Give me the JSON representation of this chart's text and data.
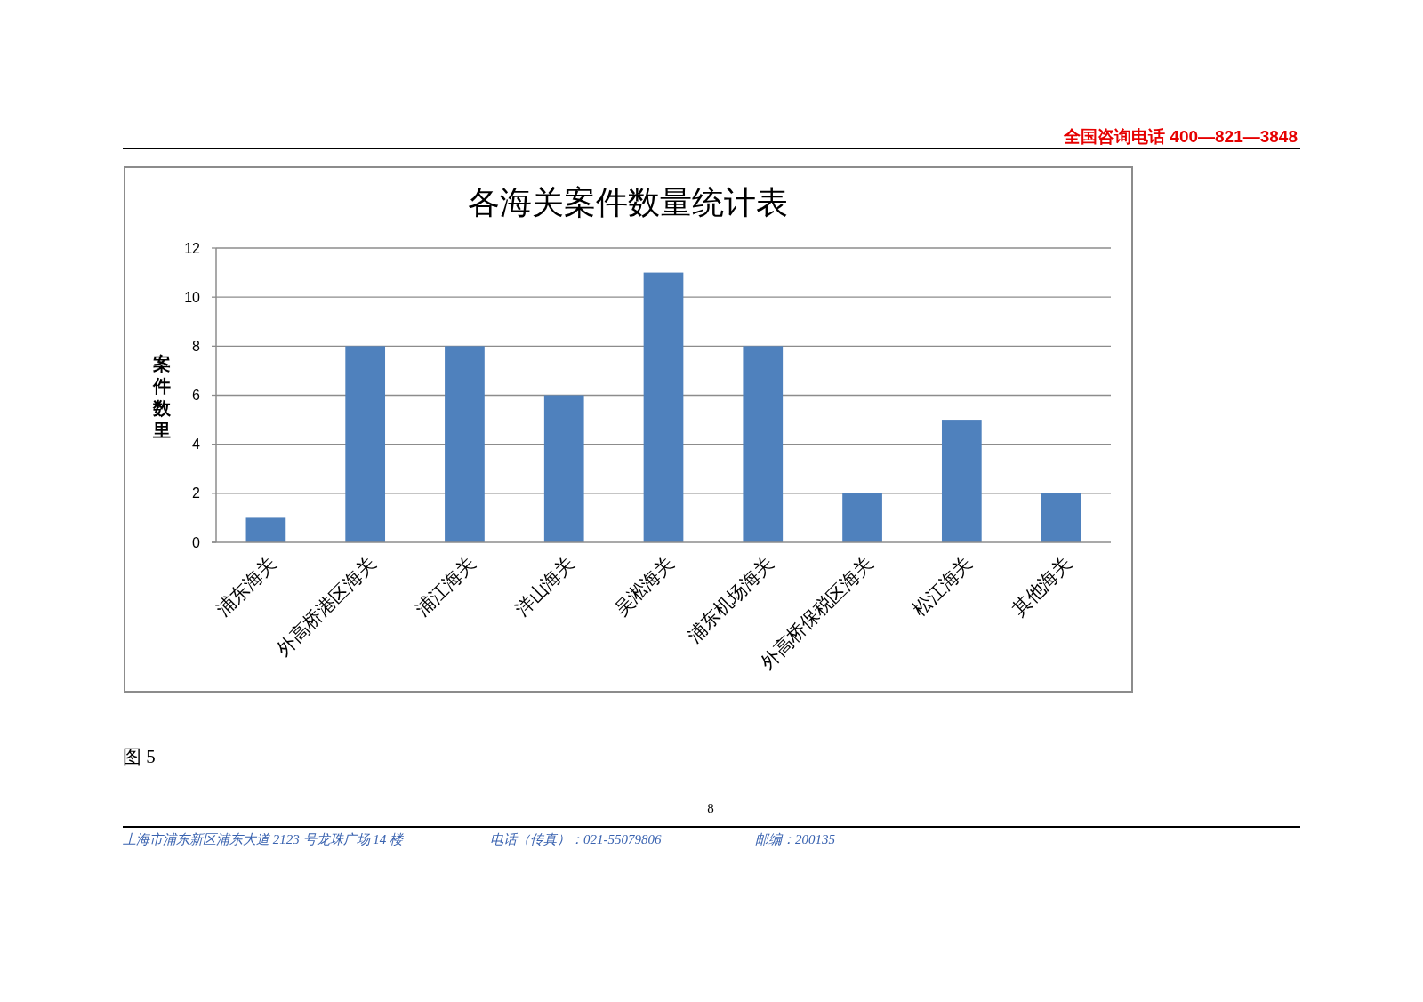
{
  "chart_data": {
    "type": "bar",
    "title": "各海关案件数量统计表",
    "ylabel": "案件数里",
    "categories": [
      "浦东海关",
      "外高桥港区海关",
      "浦江海关",
      "洋山海关",
      "吴淞海关",
      "浦东机场海关",
      "外高桥保税区海关",
      "松江海关",
      "其他海关"
    ],
    "values": [
      1,
      8,
      8,
      6,
      11,
      8,
      2,
      5,
      2
    ],
    "color": "#4f81bd",
    "ylim": [
      0,
      12
    ],
    "yticks": [
      0,
      2,
      4,
      6,
      8,
      10,
      12
    ],
    "grid": "y",
    "annotations": [
      "全国咨询电话 400—821—3848",
      "图 5",
      "8",
      "上海市浦东新区浦东大道 2123 号龙珠广场 14 楼",
      "电话（传真）：021-55079806",
      "邮编：200135"
    ]
  }
}
